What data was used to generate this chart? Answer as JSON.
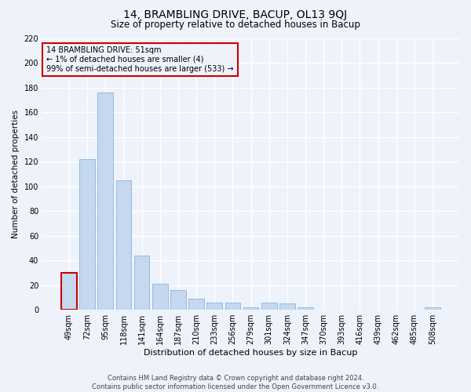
{
  "title": "14, BRAMBLING DRIVE, BACUP, OL13 9QJ",
  "subtitle": "Size of property relative to detached houses in Bacup",
  "xlabel": "Distribution of detached houses by size in Bacup",
  "ylabel": "Number of detached properties",
  "footer_line1": "Contains HM Land Registry data © Crown copyright and database right 2024.",
  "footer_line2": "Contains public sector information licensed under the Open Government Licence v3.0.",
  "annotation_line1": "14 BRAMBLING DRIVE: 51sqm",
  "annotation_line2": "← 1% of detached houses are smaller (4)",
  "annotation_line3": "99% of semi-detached houses are larger (533) →",
  "bar_color": "#c5d8f0",
  "bar_edge_color": "#7aadd4",
  "highlight_color": "#cc0000",
  "categories": [
    "49sqm",
    "72sqm",
    "95sqm",
    "118sqm",
    "141sqm",
    "164sqm",
    "187sqm",
    "210sqm",
    "233sqm",
    "256sqm",
    "279sqm",
    "301sqm",
    "324sqm",
    "347sqm",
    "370sqm",
    "393sqm",
    "416sqm",
    "439sqm",
    "462sqm",
    "485sqm",
    "508sqm"
  ],
  "values": [
    30,
    122,
    176,
    105,
    44,
    21,
    16,
    9,
    6,
    6,
    2,
    6,
    5,
    2,
    0,
    0,
    0,
    0,
    0,
    0,
    2
  ],
  "property_bar_index": 0,
  "ylim": [
    0,
    220
  ],
  "yticks": [
    0,
    20,
    40,
    60,
    80,
    100,
    120,
    140,
    160,
    180,
    200,
    220
  ],
  "background_color": "#eef2fb",
  "grid_color": "#ffffff",
  "title_fontsize": 10,
  "subtitle_fontsize": 8.5,
  "xlabel_fontsize": 8,
  "ylabel_fontsize": 7.5,
  "tick_fontsize": 7,
  "annotation_fontsize": 7,
  "footer_fontsize": 6
}
